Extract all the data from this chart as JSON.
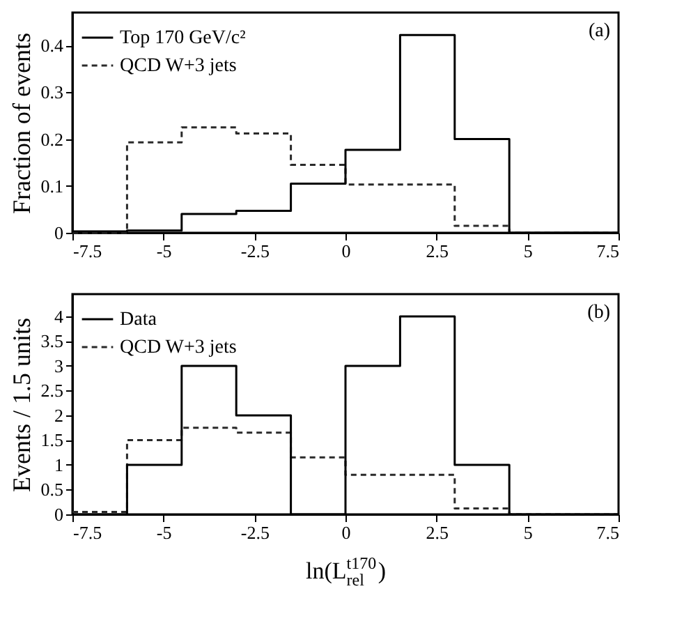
{
  "chart_data": [
    {
      "type": "histogram",
      "ylabel": "Fraction of events",
      "annotations": [
        "(a)"
      ],
      "bins": [
        -7.5,
        -6,
        -4.5,
        -3,
        -1.5,
        0,
        1.5,
        3,
        4.5,
        6,
        7.5
      ],
      "series": [
        {
          "name": "Top 170 GeV/c²",
          "color": "#000000",
          "line_style": "solid",
          "values": [
            0.003,
            0.005,
            0.04,
            0.047,
            0.105,
            0.177,
            0.422,
            0.2,
            0,
            0
          ]
        },
        {
          "name": "QCD W+3 jets",
          "color": "#2a2a2a",
          "line_style": "dashed",
          "values": [
            0,
            0.193,
            0.225,
            0.212,
            0.145,
            0.103,
            0.103,
            0.015,
            0,
            0
          ]
        }
      ],
      "xlim": [
        -7.5,
        7.5
      ],
      "xticks": [
        -7.5,
        -5,
        -2.5,
        0,
        2.5,
        5,
        7.5
      ],
      "ylim": [
        0,
        0.47
      ],
      "yticks": [
        0,
        0.1,
        0.2,
        0.3,
        0.4
      ],
      "legend": "top left",
      "grid": false
    },
    {
      "type": "histogram",
      "ylabel": "Events / 1.5 units",
      "xlabel": "ln(L$_{rel}$$^{t170}$)",
      "annotations": [
        "(b)"
      ],
      "bins": [
        -7.5,
        -6,
        -4.5,
        -3,
        -1.5,
        0,
        1.5,
        3,
        4.5,
        6,
        7.5
      ],
      "series": [
        {
          "name": "Data",
          "color": "#000000",
          "line_style": "solid",
          "values": [
            0,
            1,
            3,
            2,
            0,
            3,
            4,
            1,
            0,
            0
          ]
        },
        {
          "name": "QCD W+3 jets",
          "color": "#2a2a2a",
          "line_style": "dashed",
          "values": [
            0.05,
            1.5,
            1.75,
            1.65,
            1.15,
            0.8,
            0.8,
            0.12,
            0,
            0
          ]
        }
      ],
      "xlim": [
        -7.5,
        7.5
      ],
      "xticks": [
        -7.5,
        -5,
        -2.5,
        0,
        2.5,
        5,
        7.5
      ],
      "ylim": [
        0,
        4.45
      ],
      "yticks": [
        0,
        0.5,
        1,
        1.5,
        2,
        2.5,
        3,
        3.5,
        4
      ],
      "legend": "top left",
      "grid": false
    }
  ]
}
